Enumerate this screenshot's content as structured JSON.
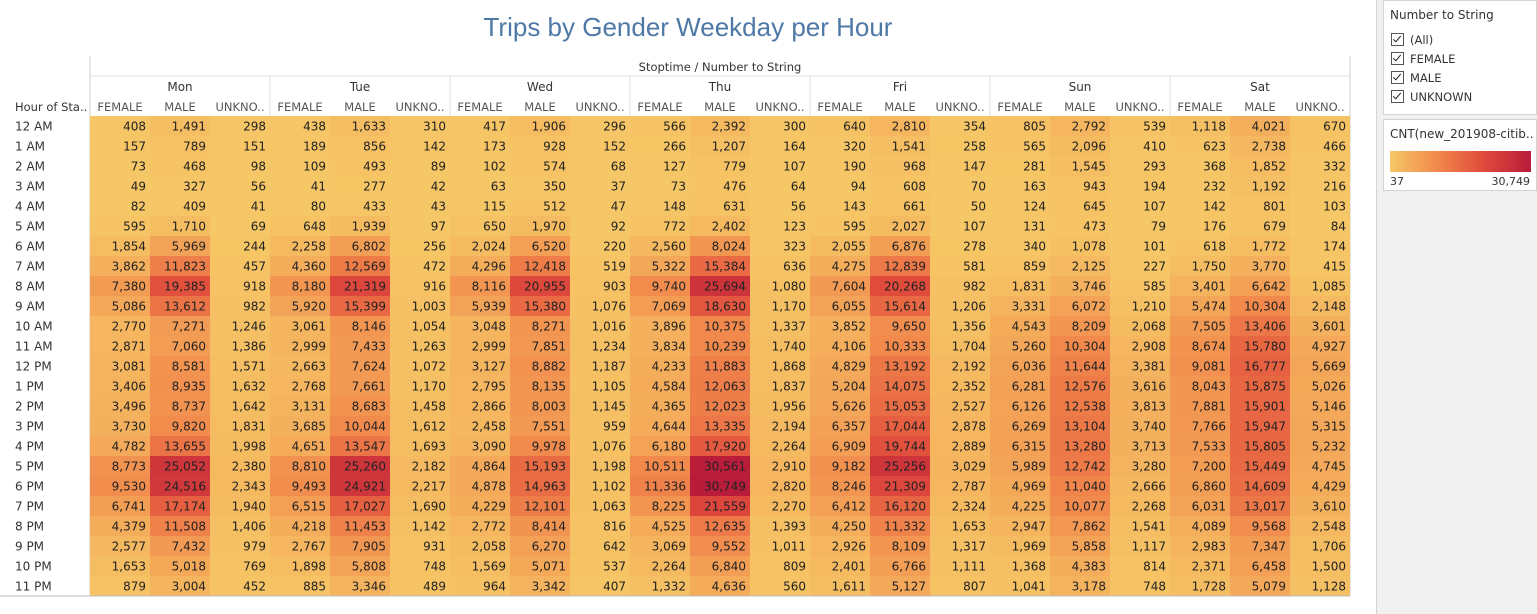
{
  "title": "Trips by Gender Weekday per Hour",
  "column_header": "Stoptime / Number to String",
  "row_header": "Hour of Sta..",
  "genders": [
    "FEMALE",
    "MALE",
    "UNKNO.."
  ],
  "filter": {
    "title": "Number to String",
    "options": [
      {
        "label": "(All)",
        "checked": true
      },
      {
        "label": "FEMALE",
        "checked": true
      },
      {
        "label": "MALE",
        "checked": true
      },
      {
        "label": "UNKNOWN",
        "checked": true
      }
    ]
  },
  "legend": {
    "title": "CNT(new_201908-citib..",
    "min_label": "37",
    "max_label": "30,749",
    "min": 37,
    "max": 30749,
    "colors": [
      "#f6c766",
      "#f1894c",
      "#e04a3c",
      "#b81c3a"
    ]
  },
  "chart_data": {
    "type": "heatmap",
    "days": [
      "Mon",
      "Tue",
      "Wed",
      "Thu",
      "Fri",
      "Sun",
      "Sat"
    ],
    "rows": [
      "12 AM",
      "1 AM",
      "2 AM",
      "3 AM",
      "4 AM",
      "5 AM",
      "6 AM",
      "7 AM",
      "8 AM",
      "9 AM",
      "10 AM",
      "11 AM",
      "12 PM",
      "1 PM",
      "2 PM",
      "3 PM",
      "4 PM",
      "5 PM",
      "6 PM",
      "7 PM",
      "8 PM",
      "9 PM",
      "10 PM",
      "11 PM"
    ],
    "values": [
      [
        408,
        1491,
        298,
        438,
        1633,
        310,
        417,
        1906,
        296,
        566,
        2392,
        300,
        640,
        2810,
        354,
        805,
        2792,
        539,
        1118,
        4021,
        670
      ],
      [
        157,
        789,
        151,
        189,
        856,
        142,
        173,
        928,
        152,
        266,
        1207,
        164,
        320,
        1541,
        258,
        565,
        2096,
        410,
        623,
        2738,
        466
      ],
      [
        73,
        468,
        98,
        109,
        493,
        89,
        102,
        574,
        68,
        127,
        779,
        107,
        190,
        968,
        147,
        281,
        1545,
        293,
        368,
        1852,
        332
      ],
      [
        49,
        327,
        56,
        41,
        277,
        42,
        63,
        350,
        37,
        73,
        476,
        64,
        94,
        608,
        70,
        163,
        943,
        194,
        232,
        1192,
        216
      ],
      [
        82,
        409,
        41,
        80,
        433,
        43,
        115,
        512,
        47,
        148,
        631,
        56,
        143,
        661,
        50,
        124,
        645,
        107,
        142,
        801,
        103
      ],
      [
        595,
        1710,
        69,
        648,
        1939,
        97,
        650,
        1970,
        92,
        772,
        2402,
        123,
        595,
        2027,
        107,
        131,
        473,
        79,
        176,
        679,
        84
      ],
      [
        1854,
        5969,
        244,
        2258,
        6802,
        256,
        2024,
        6520,
        220,
        2560,
        8024,
        323,
        2055,
        6876,
        278,
        340,
        1078,
        101,
        618,
        1772,
        174
      ],
      [
        3862,
        11823,
        457,
        4360,
        12569,
        472,
        4296,
        12418,
        519,
        5322,
        15384,
        636,
        4275,
        12839,
        581,
        859,
        2125,
        227,
        1750,
        3770,
        415
      ],
      [
        7380,
        19385,
        918,
        8180,
        21319,
        916,
        8116,
        20955,
        903,
        9740,
        25694,
        1080,
        7604,
        20268,
        982,
        1831,
        3746,
        585,
        3401,
        6642,
        1085
      ],
      [
        5086,
        13612,
        982,
        5920,
        15399,
        1003,
        5939,
        15380,
        1076,
        7069,
        18630,
        1170,
        6055,
        15614,
        1206,
        3331,
        6072,
        1210,
        5474,
        10304,
        2148
      ],
      [
        2770,
        7271,
        1246,
        3061,
        8146,
        1054,
        3048,
        8271,
        1016,
        3896,
        10375,
        1337,
        3852,
        9650,
        1356,
        4543,
        8209,
        2068,
        7505,
        13406,
        3601
      ],
      [
        2871,
        7060,
        1386,
        2999,
        7433,
        1263,
        2999,
        7851,
        1234,
        3834,
        10239,
        1740,
        4106,
        10333,
        1704,
        5260,
        10304,
        2908,
        8674,
        15780,
        4927
      ],
      [
        3081,
        8581,
        1571,
        2663,
        7624,
        1072,
        3127,
        8882,
        1187,
        4233,
        11883,
        1868,
        4829,
        13192,
        2192,
        6036,
        11644,
        3381,
        9081,
        16777,
        5669
      ],
      [
        3406,
        8935,
        1632,
        2768,
        7661,
        1170,
        2795,
        8135,
        1105,
        4584,
        12063,
        1837,
        5204,
        14075,
        2352,
        6281,
        12576,
        3616,
        8043,
        15875,
        5026
      ],
      [
        3496,
        8737,
        1642,
        3131,
        8683,
        1458,
        2866,
        8003,
        1145,
        4365,
        12023,
        1956,
        5626,
        15053,
        2527,
        6126,
        12538,
        3813,
        7881,
        15901,
        5146
      ],
      [
        3730,
        9820,
        1831,
        3685,
        10044,
        1612,
        2458,
        7551,
        959,
        4644,
        13335,
        2194,
        6357,
        17044,
        2878,
        6269,
        13104,
        3740,
        7766,
        15947,
        5315
      ],
      [
        4782,
        13655,
        1998,
        4651,
        13547,
        1693,
        3090,
        9978,
        1076,
        6180,
        17920,
        2264,
        6909,
        19744,
        2889,
        6315,
        13280,
        3713,
        7533,
        15805,
        5232
      ],
      [
        8773,
        25052,
        2380,
        8810,
        25260,
        2182,
        4864,
        15193,
        1198,
        10511,
        30561,
        2910,
        9182,
        25256,
        3029,
        5989,
        12742,
        3280,
        7200,
        15449,
        4745
      ],
      [
        9530,
        24516,
        2343,
        9493,
        24921,
        2217,
        4878,
        14963,
        1102,
        11336,
        30749,
        2820,
        8246,
        21309,
        2787,
        4969,
        11040,
        2666,
        6860,
        14609,
        4429
      ],
      [
        6741,
        17174,
        1940,
        6515,
        17027,
        1690,
        4229,
        12101,
        1063,
        8225,
        21559,
        2270,
        6412,
        16120,
        2324,
        4225,
        10077,
        2268,
        6031,
        13017,
        3610
      ],
      [
        4379,
        11508,
        1406,
        4218,
        11453,
        1142,
        2772,
        8414,
        816,
        4525,
        12635,
        1393,
        4250,
        11332,
        1653,
        2947,
        7862,
        1541,
        4089,
        9568,
        2548
      ],
      [
        2577,
        7432,
        979,
        2767,
        7905,
        931,
        2058,
        6270,
        642,
        3069,
        9552,
        1011,
        2926,
        8109,
        1317,
        1969,
        5858,
        1117,
        2983,
        7347,
        1706
      ],
      [
        1653,
        5018,
        769,
        1898,
        5808,
        748,
        1569,
        5071,
        537,
        2264,
        6840,
        809,
        2401,
        6766,
        1111,
        1368,
        4383,
        814,
        2371,
        6458,
        1500
      ],
      [
        879,
        3004,
        452,
        885,
        3346,
        489,
        964,
        3342,
        407,
        1332,
        4636,
        560,
        1611,
        5127,
        807,
        1041,
        3178,
        748,
        1728,
        5079,
        1128
      ]
    ]
  }
}
